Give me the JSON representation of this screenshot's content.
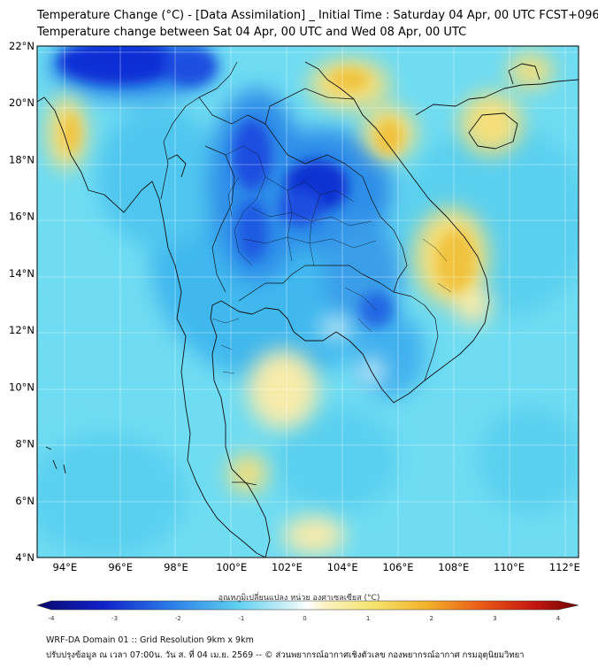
{
  "header": {
    "title_line1": "Temperature Change (°C) - [Data Assimilation] _ Initial Time : Saturday 04 Apr, 00 UTC FCST+096",
    "title_line2": "Temperature change between Sat 04 Apr, 00 UTC and Wed 08 Apr, 00 UTC"
  },
  "map": {
    "lat_range": [
      4,
      22
    ],
    "lon_range": [
      93,
      112.5
    ],
    "lat_ticks": [
      "4°N",
      "6°N",
      "8°N",
      "10°N",
      "12°N",
      "14°N",
      "16°N",
      "18°N",
      "20°N",
      "22°N"
    ],
    "lon_ticks": [
      "94°E",
      "96°E",
      "98°E",
      "100°E",
      "102°E",
      "104°E",
      "106°E",
      "108°E",
      "110°E",
      "112°E"
    ],
    "grid": true,
    "colormap": "blue-cyan-white-yellow-red"
  },
  "colorbar": {
    "title": "อุณหภูมิเปลี่ยนแปลง หน่วย องศาเซลเซียส (°C)",
    "range": [
      -4,
      4
    ],
    "tick_labels": [
      "-4",
      "-3",
      "-2",
      "-1",
      "0",
      "1",
      "2",
      "3",
      "4"
    ]
  },
  "footer": {
    "line1": "WRF-DA Domain 01 :: Grid Resolution 9km x 9km",
    "line2": "ปรับปรุงข้อมูล ณ เวลา 07:00น. วัน ส. ที่ 04 เม.ย. 2569 -- © ส่วนพยากรณ์อากาศเชิงตัวเลข กองพยากรณ์อากาศ กรมอุตุนิยมวิทยา"
  },
  "colors": {
    "ocean_base": "#6fdcf2",
    "cyan": "#5ad0ef",
    "blue": "#2d8ee8",
    "deep_blue": "#0b2fd6",
    "pale": "#cfeef7",
    "yellow": "#f5df7a",
    "orange": "#f0c23e"
  }
}
